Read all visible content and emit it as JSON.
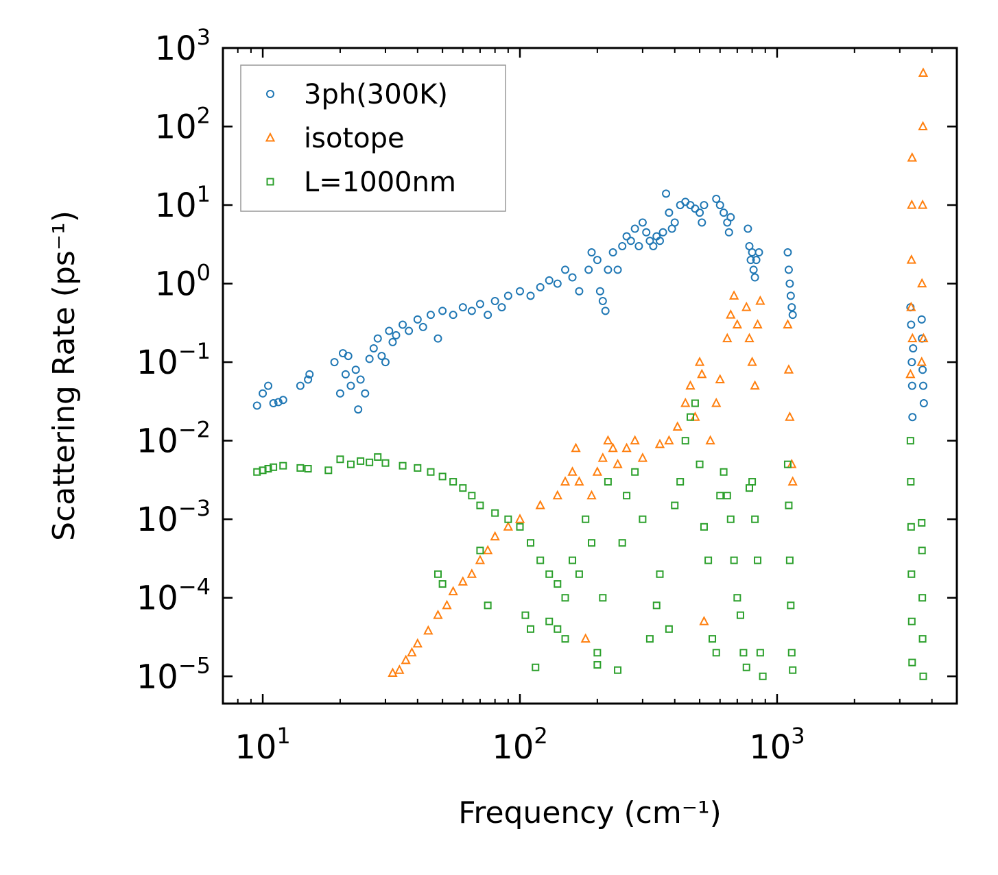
{
  "chart_data": {
    "type": "scatter",
    "xscale": "log",
    "yscale": "log",
    "xlim": [
      7,
      5000
    ],
    "ylim": [
      4.5e-06,
      1000
    ],
    "xlabel": "Frequency (cm⁻¹)",
    "ylabel": "Scattering Rate (ps⁻¹)",
    "xticks": [
      {
        "value": 10,
        "base": "10",
        "exp": "1"
      },
      {
        "value": 100,
        "base": "10",
        "exp": "2"
      },
      {
        "value": 1000,
        "base": "10",
        "exp": "3"
      }
    ],
    "yticks": [
      {
        "value": 1e-05,
        "base": "10",
        "exp": "−5"
      },
      {
        "value": 0.0001,
        "base": "10",
        "exp": "−4"
      },
      {
        "value": 0.001,
        "base": "10",
        "exp": "−3"
      },
      {
        "value": 0.01,
        "base": "10",
        "exp": "−2"
      },
      {
        "value": 0.1,
        "base": "10",
        "exp": "−1"
      },
      {
        "value": 1,
        "base": "10",
        "exp": "0"
      },
      {
        "value": 10,
        "base": "10",
        "exp": "1"
      },
      {
        "value": 100,
        "base": "10",
        "exp": "2"
      },
      {
        "value": 1000,
        "base": "10",
        "exp": "3"
      }
    ],
    "legend_position": "top-left",
    "series": [
      {
        "name": "3ph(300K)",
        "marker": "circle",
        "color": "#1f77b4",
        "points": [
          [
            9.5,
            0.028
          ],
          [
            10,
            0.04
          ],
          [
            10.5,
            0.05
          ],
          [
            11,
            0.03
          ],
          [
            11.5,
            0.031
          ],
          [
            12,
            0.033
          ],
          [
            14,
            0.05
          ],
          [
            15,
            0.06
          ],
          [
            15.2,
            0.07
          ],
          [
            19,
            0.1
          ],
          [
            20,
            0.04
          ],
          [
            20.5,
            0.13
          ],
          [
            21,
            0.07
          ],
          [
            21.5,
            0.12
          ],
          [
            22,
            0.05
          ],
          [
            23,
            0.08
          ],
          [
            23.5,
            0.025
          ],
          [
            24,
            0.06
          ],
          [
            25,
            0.04
          ],
          [
            26,
            0.11
          ],
          [
            27,
            0.15
          ],
          [
            28,
            0.2
          ],
          [
            29,
            0.12
          ],
          [
            30,
            0.1
          ],
          [
            31,
            0.25
          ],
          [
            32,
            0.18
          ],
          [
            33,
            0.22
          ],
          [
            35,
            0.3
          ],
          [
            37,
            0.25
          ],
          [
            40,
            0.35
          ],
          [
            42,
            0.28
          ],
          [
            45,
            0.4
          ],
          [
            48,
            0.2
          ],
          [
            50,
            0.45
          ],
          [
            55,
            0.4
          ],
          [
            60,
            0.5
          ],
          [
            65,
            0.45
          ],
          [
            70,
            0.55
          ],
          [
            75,
            0.4
          ],
          [
            80,
            0.6
          ],
          [
            85,
            0.5
          ],
          [
            90,
            0.7
          ],
          [
            100,
            0.8
          ],
          [
            110,
            0.7
          ],
          [
            120,
            0.9
          ],
          [
            130,
            1.1
          ],
          [
            140,
            1.0
          ],
          [
            150,
            1.5
          ],
          [
            160,
            1.2
          ],
          [
            170,
            0.8
          ],
          [
            185,
            1.5
          ],
          [
            190,
            2.5
          ],
          [
            200,
            2.0
          ],
          [
            205,
            0.8
          ],
          [
            210,
            0.6
          ],
          [
            215,
            0.45
          ],
          [
            220,
            1.5
          ],
          [
            230,
            2.5
          ],
          [
            240,
            1.5
          ],
          [
            250,
            3.0
          ],
          [
            260,
            4.0
          ],
          [
            270,
            3.5
          ],
          [
            280,
            5.0
          ],
          [
            290,
            3.0
          ],
          [
            300,
            6.0
          ],
          [
            310,
            4.5
          ],
          [
            320,
            3.5
          ],
          [
            330,
            3.0
          ],
          [
            340,
            4.0
          ],
          [
            350,
            3.5
          ],
          [
            360,
            4.5
          ],
          [
            370,
            14.0
          ],
          [
            380,
            8.0
          ],
          [
            390,
            5.0
          ],
          [
            400,
            6.0
          ],
          [
            420,
            10.0
          ],
          [
            440,
            11.0
          ],
          [
            460,
            10.0
          ],
          [
            480,
            9.0
          ],
          [
            500,
            8.0
          ],
          [
            510,
            6.0
          ],
          [
            520,
            10.0
          ],
          [
            580,
            12.0
          ],
          [
            600,
            10.0
          ],
          [
            620,
            8.0
          ],
          [
            640,
            6.0
          ],
          [
            650,
            4.5
          ],
          [
            660,
            7.0
          ],
          [
            770,
            5.0
          ],
          [
            780,
            3.0
          ],
          [
            790,
            2.0
          ],
          [
            800,
            2.5
          ],
          [
            810,
            1.5
          ],
          [
            820,
            1.2
          ],
          [
            830,
            2.0
          ],
          [
            850,
            2.5
          ],
          [
            1100,
            2.5
          ],
          [
            1110,
            1.5
          ],
          [
            1120,
            1.0
          ],
          [
            1130,
            0.7
          ],
          [
            1140,
            0.5
          ],
          [
            1150,
            0.4
          ],
          [
            3300,
            0.5
          ],
          [
            3320,
            0.3
          ],
          [
            3340,
            0.1
          ],
          [
            3350,
            0.05
          ],
          [
            3360,
            0.02
          ],
          [
            3380,
            0.15
          ],
          [
            3650,
            0.35
          ],
          [
            3660,
            0.2
          ],
          [
            3680,
            0.08
          ],
          [
            3700,
            0.05
          ],
          [
            3720,
            0.03
          ]
        ]
      },
      {
        "name": "isotope",
        "marker": "triangle",
        "color": "#ff7f0e",
        "points": [
          [
            32,
            1.1e-05
          ],
          [
            34,
            1.2e-05
          ],
          [
            36,
            1.6e-05
          ],
          [
            38,
            2e-05
          ],
          [
            40,
            2.6e-05
          ],
          [
            44,
            3.8e-05
          ],
          [
            48,
            6e-05
          ],
          [
            52,
            8e-05
          ],
          [
            55,
            0.00012
          ],
          [
            60,
            0.00016
          ],
          [
            65,
            0.0002
          ],
          [
            70,
            0.0003
          ],
          [
            75,
            0.0004
          ],
          [
            80,
            0.0006
          ],
          [
            90,
            0.0008
          ],
          [
            100,
            0.001
          ],
          [
            120,
            0.0015
          ],
          [
            140,
            0.002
          ],
          [
            150,
            0.003
          ],
          [
            160,
            0.004
          ],
          [
            165,
            0.008
          ],
          [
            170,
            0.003
          ],
          [
            180,
            3e-05
          ],
          [
            190,
            0.002
          ],
          [
            200,
            0.004
          ],
          [
            210,
            0.006
          ],
          [
            220,
            0.01
          ],
          [
            230,
            0.008
          ],
          [
            240,
            0.005
          ],
          [
            260,
            0.008
          ],
          [
            280,
            0.01
          ],
          [
            300,
            0.006
          ],
          [
            350,
            0.009
          ],
          [
            380,
            0.01
          ],
          [
            410,
            0.015
          ],
          [
            440,
            0.03
          ],
          [
            460,
            0.05
          ],
          [
            480,
            0.02
          ],
          [
            500,
            0.1
          ],
          [
            510,
            0.07
          ],
          [
            520,
            5e-05
          ],
          [
            550,
            0.01
          ],
          [
            580,
            0.03
          ],
          [
            600,
            0.06
          ],
          [
            640,
            0.2
          ],
          [
            660,
            0.4
          ],
          [
            680,
            0.7
          ],
          [
            700,
            0.3
          ],
          [
            760,
            0.5
          ],
          [
            780,
            0.2
          ],
          [
            800,
            0.1
          ],
          [
            820,
            0.05
          ],
          [
            840,
            0.3
          ],
          [
            860,
            0.6
          ],
          [
            1100,
            0.3
          ],
          [
            1110,
            0.08
          ],
          [
            1120,
            0.02
          ],
          [
            1140,
            0.005
          ],
          [
            1150,
            0.003
          ],
          [
            3300,
            0.07
          ],
          [
            3320,
            0.5
          ],
          [
            3330,
            2.0
          ],
          [
            3340,
            10.0
          ],
          [
            3350,
            40.0
          ],
          [
            3360,
            0.2
          ],
          [
            3650,
            0.1
          ],
          [
            3660,
            1.0
          ],
          [
            3680,
            10.0
          ],
          [
            3690,
            100.0
          ],
          [
            3700,
            480.0
          ],
          [
            3710,
            0.2
          ]
        ]
      },
      {
        "name": "L=1000nm",
        "marker": "square",
        "color": "#2ca02c",
        "points": [
          [
            9.5,
            0.004
          ],
          [
            10,
            0.0042
          ],
          [
            10.5,
            0.0044
          ],
          [
            11,
            0.0046
          ],
          [
            12,
            0.0048
          ],
          [
            14,
            0.0045
          ],
          [
            15,
            0.0044
          ],
          [
            18,
            0.0042
          ],
          [
            20,
            0.0058
          ],
          [
            22,
            0.005
          ],
          [
            24,
            0.0055
          ],
          [
            26,
            0.0053
          ],
          [
            28,
            0.0062
          ],
          [
            30,
            0.0052
          ],
          [
            35,
            0.0048
          ],
          [
            40,
            0.0045
          ],
          [
            45,
            0.004
          ],
          [
            50,
            0.0035
          ],
          [
            55,
            0.003
          ],
          [
            60,
            0.0025
          ],
          [
            65,
            0.002
          ],
          [
            70,
            0.0015
          ],
          [
            80,
            0.0012
          ],
          [
            90,
            0.001
          ],
          [
            100,
            0.0008
          ],
          [
            48,
            0.0002
          ],
          [
            50,
            0.00015
          ],
          [
            70,
            0.0004
          ],
          [
            75,
            8e-05
          ],
          [
            110,
            0.0005
          ],
          [
            120,
            0.0003
          ],
          [
            130,
            0.0002
          ],
          [
            140,
            0.00015
          ],
          [
            150,
            0.0001
          ],
          [
            160,
            0.0003
          ],
          [
            170,
            0.0002
          ],
          [
            105,
            6e-05
          ],
          [
            110,
            4e-05
          ],
          [
            115,
            1.3e-05
          ],
          [
            130,
            5e-05
          ],
          [
            140,
            4e-05
          ],
          [
            150,
            3e-05
          ],
          [
            180,
            0.001
          ],
          [
            190,
            0.0005
          ],
          [
            200,
            2e-05
          ],
          [
            200,
            1.4e-05
          ],
          [
            210,
            0.0001
          ],
          [
            220,
            0.003
          ],
          [
            240,
            1.2e-05
          ],
          [
            250,
            0.0005
          ],
          [
            260,
            0.002
          ],
          [
            280,
            0.004
          ],
          [
            300,
            0.001
          ],
          [
            320,
            3e-05
          ],
          [
            340,
            8e-05
          ],
          [
            350,
            0.0002
          ],
          [
            380,
            4e-05
          ],
          [
            400,
            0.0015
          ],
          [
            420,
            0.003
          ],
          [
            440,
            0.01
          ],
          [
            460,
            0.02
          ],
          [
            480,
            0.03
          ],
          [
            500,
            0.005
          ],
          [
            520,
            0.0008
          ],
          [
            540,
            0.0003
          ],
          [
            560,
            3e-05
          ],
          [
            580,
            2e-05
          ],
          [
            600,
            0.002
          ],
          [
            620,
            0.004
          ],
          [
            640,
            0.002
          ],
          [
            660,
            0.001
          ],
          [
            680,
            0.0003
          ],
          [
            700,
            0.0001
          ],
          [
            720,
            6e-05
          ],
          [
            740,
            2e-05
          ],
          [
            760,
            1.3e-05
          ],
          [
            780,
            0.0025
          ],
          [
            800,
            0.003
          ],
          [
            820,
            0.001
          ],
          [
            840,
            0.0003
          ],
          [
            860,
            2e-05
          ],
          [
            880,
            1e-05
          ],
          [
            1100,
            0.005
          ],
          [
            1110,
            0.0015
          ],
          [
            1120,
            0.0003
          ],
          [
            1130,
            8e-05
          ],
          [
            1140,
            2e-05
          ],
          [
            1150,
            1.2e-05
          ],
          [
            3300,
            0.01
          ],
          [
            3310,
            0.003
          ],
          [
            3320,
            0.0008
          ],
          [
            3330,
            0.0002
          ],
          [
            3340,
            5e-05
          ],
          [
            3350,
            1.5e-05
          ],
          [
            3650,
            0.0009
          ],
          [
            3660,
            0.0004
          ],
          [
            3670,
            0.0001
          ],
          [
            3680,
            3e-05
          ],
          [
            3700,
            1e-05
          ]
        ]
      }
    ]
  }
}
